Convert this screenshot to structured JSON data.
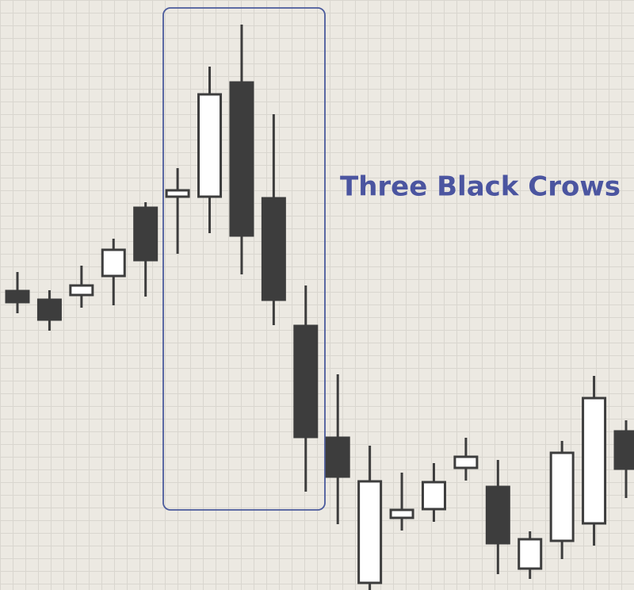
{
  "chart_data": {
    "type": "candlestick",
    "annotation": "Three Black Crows",
    "series": [
      {
        "open": [
          377,
          366,
          372,
          396,
          482,
          496,
          496,
          640,
          494,
          333,
          192,
          9,
          91,
          102,
          154,
          130,
          27,
          62,
          84,
          200
        ],
        "high": [
          401,
          378,
          409,
          443,
          489,
          532,
          660,
          713,
          600,
          384,
          272,
          182,
          148,
          160,
          192,
          164,
          74,
          188,
          270,
          214
        ],
        "low": [
          349,
          327,
          356,
          359,
          370,
          424,
          450,
          398,
          334,
          124,
          83,
          0,
          75,
          86,
          138,
          20,
          14,
          39,
          56,
          116
        ],
        "close": [
          363,
          341,
          384,
          429,
          416,
          504,
          625,
          447,
          366,
          193,
          143,
          137,
          101,
          136,
          168,
          59,
          64,
          173,
          242,
          153
        ]
      }
    ],
    "up_color": "#ffffff",
    "down_color": "#3d3d3d",
    "edge_color": "#3d3d3d",
    "ylim": [
      0,
      744
    ],
    "grid": true
  }
}
